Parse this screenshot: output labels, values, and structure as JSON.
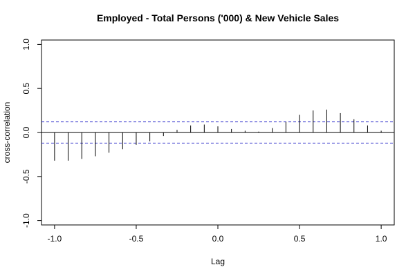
{
  "chart_data": {
    "type": "bar",
    "title": "Employed - Total Persons ('000) & New Vehicle Sales",
    "xlabel": "Lag",
    "ylabel": "cross-correlation",
    "xlim": [
      -1.08,
      1.08
    ],
    "ylim": [
      -1.05,
      1.05
    ],
    "x_ticks": [
      -1.0,
      -0.5,
      0.0,
      0.5,
      1.0
    ],
    "x_tick_labels": [
      "-1.0",
      "-0.5",
      "0.0",
      "0.5",
      "1.0"
    ],
    "y_ticks": [
      -1.0,
      -0.5,
      0.0,
      0.5,
      1.0
    ],
    "y_tick_labels": [
      "-1.0",
      "-0.5",
      "0.0",
      "0.5",
      "1.0"
    ],
    "confidence_bound": 0.12,
    "series": [
      {
        "x": [
          -1.0,
          -0.9167,
          -0.8333,
          -0.75,
          -0.6667,
          -0.5833,
          -0.5,
          -0.4167,
          -0.3333,
          -0.25,
          -0.1667,
          -0.0833,
          0.0,
          0.0833,
          0.1667,
          0.25,
          0.3333,
          0.4167,
          0.5,
          0.5833,
          0.6667,
          0.75,
          0.8333,
          0.9167,
          1.0
        ],
        "values": [
          -0.32,
          -0.32,
          -0.3,
          -0.27,
          -0.23,
          -0.19,
          -0.14,
          -0.1,
          -0.04,
          0.03,
          0.08,
          0.09,
          0.07,
          0.04,
          0.02,
          0.01,
          0.05,
          0.12,
          0.2,
          0.25,
          0.26,
          0.22,
          0.15,
          0.08,
          0.02
        ]
      }
    ],
    "grid": false,
    "colors": {
      "spike": "#000000",
      "confidence": "#3333cc",
      "zero_line": "#000000"
    }
  }
}
